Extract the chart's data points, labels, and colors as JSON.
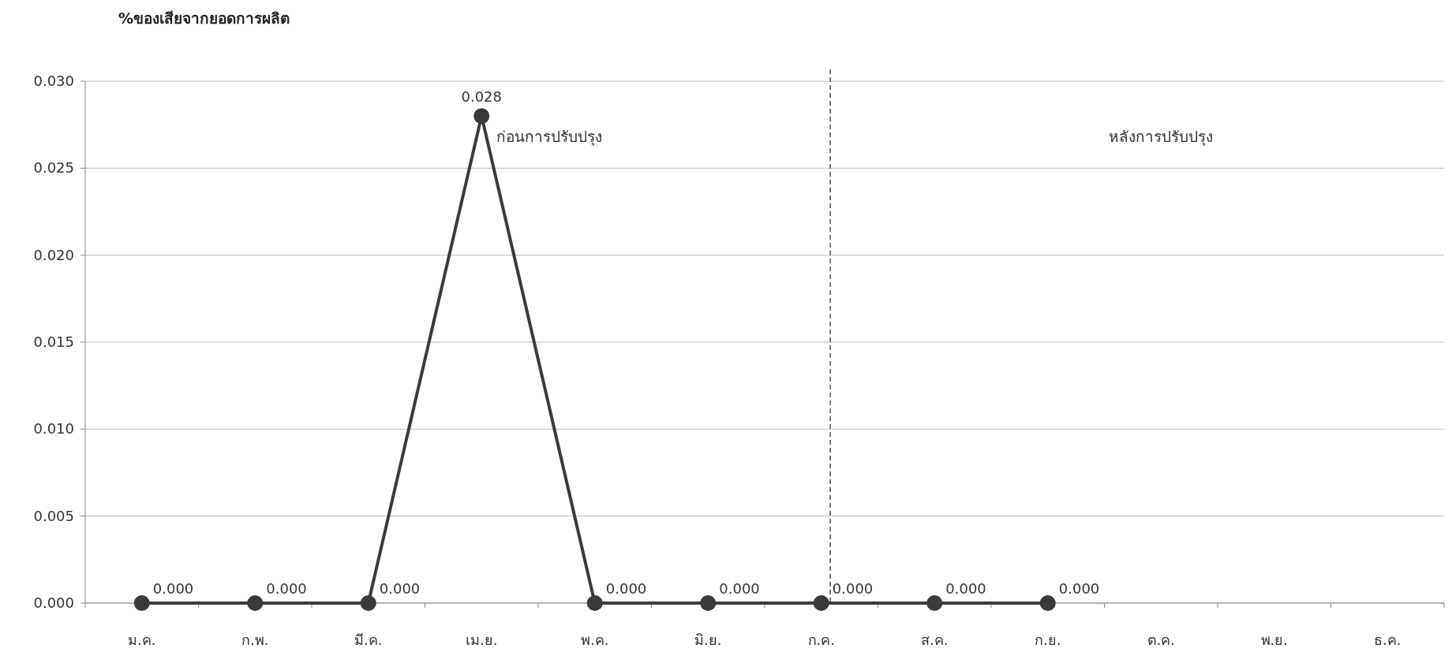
{
  "chart_data": {
    "type": "line",
    "title": "%ของเสียจากยอดการผลิต",
    "categories": [
      "ม.ค.",
      "ก.พ.",
      "มี.ค.",
      "เม.ย.",
      "พ.ค.",
      "มิ.ย.",
      "ก.ค.",
      "ส.ค.",
      "ก.ย.",
      "ต.ค.",
      "พ.ย.",
      "ธ.ค."
    ],
    "series": [
      {
        "color": "#3a3a3a",
        "values": [
          0,
          0,
          0,
          0.028,
          0,
          0,
          0,
          0,
          0,
          null,
          null,
          null
        ],
        "value_labels": [
          "0.000",
          "0.000",
          "0.000",
          "0.028",
          "0.000",
          "0.000",
          "0.000",
          "0.000",
          "0.000",
          null,
          null,
          null
        ]
      }
    ],
    "ylim": [
      0,
      0.03
    ],
    "yticks": [
      {
        "value": 0,
        "label": "0.000"
      },
      {
        "value": 0.005,
        "label": "0.005"
      },
      {
        "value": 0.01,
        "label": "0.010"
      },
      {
        "value": 0.015,
        "label": "0.015"
      },
      {
        "value": 0.02,
        "label": "0.020"
      },
      {
        "value": 0.025,
        "label": "0.025"
      },
      {
        "value": 0.03,
        "label": "0.030"
      }
    ],
    "grid": "y",
    "marker": "circle",
    "line_style": "solid",
    "ref_lines": [
      {
        "axis": "x",
        "value": "ก.ค.",
        "line_style": "dashed",
        "color": "#555555"
      }
    ],
    "annotations": [
      "ก่อนการปรับปรุง",
      "หลังการปรับปรุง"
    ]
  }
}
